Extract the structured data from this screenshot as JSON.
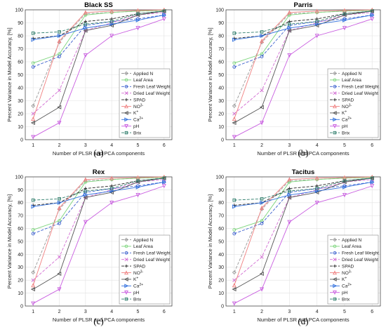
{
  "chart_data": [
    {
      "type": "line",
      "title": "Black SS",
      "caption": "(a)",
      "xlabel": "Number of PLSR and PCA components",
      "ylabel": "Percent Variance in Model Accuracy, [%]",
      "x": [
        1,
        2,
        3,
        4,
        5,
        6
      ],
      "xlim": [
        0.7,
        6.3
      ],
      "ylim": [
        0,
        100
      ],
      "xticks": [
        1,
        2,
        3,
        4,
        5,
        6
      ],
      "yticks": [
        0,
        10,
        20,
        30,
        40,
        50,
        60,
        70,
        80,
        90,
        100
      ],
      "grid": true,
      "legend_position": "bottom-right",
      "series": [
        {
          "name": "Applied N",
          "values": [
            26,
            75,
            97,
            98,
            99,
            99.5
          ],
          "color": "#999999",
          "dash": "4,2",
          "marker": "diamond"
        },
        {
          "name": "Leaf Area",
          "values": [
            59,
            66,
            96,
            98,
            99,
            99.5
          ],
          "color": "#7cd67c",
          "dash": "",
          "marker": "circle"
        },
        {
          "name": "Fresh Leaf Weight",
          "values": [
            56,
            64,
            88,
            91,
            93,
            96
          ],
          "color": "#3a5fcd",
          "dash": "4,2",
          "marker": "circle"
        },
        {
          "name": "Dried Leaf Weight",
          "values": [
            20,
            38,
            84,
            90,
            96,
            98
          ],
          "color": "#d36fd3",
          "dash": "4,2",
          "marker": "x"
        },
        {
          "name": "SPAD",
          "values": [
            78,
            80,
            91,
            93,
            97,
            99
          ],
          "color": "#222222",
          "dash": "4,2",
          "marker": "plus"
        },
        {
          "name": "NO3-",
          "values": [
            16,
            76,
            98,
            99,
            99.5,
            100
          ],
          "color": "#f08080",
          "dash": "",
          "marker": "triangle-up"
        },
        {
          "name": "K+",
          "values": [
            13,
            25,
            84,
            88,
            96,
            99
          ],
          "color": "#555555",
          "dash": "",
          "marker": "triangle-left"
        },
        {
          "name": "Ca2+",
          "values": [
            77,
            80,
            86,
            89,
            92,
            96
          ],
          "color": "#2f6fde",
          "dash": "",
          "marker": "triangle-right"
        },
        {
          "name": "pH",
          "values": [
            2,
            13,
            65,
            80,
            86,
            93
          ],
          "color": "#c95ee0",
          "dash": "",
          "marker": "triangle-down"
        },
        {
          "name": "Brix",
          "values": [
            82,
            83,
            89,
            91,
            97,
            99
          ],
          "color": "#2e7d6b",
          "dash": "4,2",
          "marker": "square"
        }
      ]
    },
    {
      "type": "line",
      "title": "Parris",
      "caption": "(b)",
      "xlabel": "Number of PLSR and PCA components",
      "ylabel": "Percent Variance in Model Accuracy, [%]",
      "x": [
        1,
        2,
        3,
        4,
        5,
        6
      ],
      "xlim": [
        0.7,
        6.3
      ],
      "ylim": [
        0,
        100
      ],
      "xticks": [
        1,
        2,
        3,
        4,
        5,
        6
      ],
      "yticks": [
        0,
        10,
        20,
        30,
        40,
        50,
        60,
        70,
        80,
        90,
        100
      ],
      "grid": true,
      "legend_position": "bottom-right",
      "series": [
        {
          "name": "Applied N",
          "values": [
            26,
            75,
            97,
            98,
            99,
            99.5
          ],
          "color": "#999999",
          "dash": "4,2",
          "marker": "diamond"
        },
        {
          "name": "Leaf Area",
          "values": [
            59,
            66,
            96,
            98,
            99,
            99.5
          ],
          "color": "#7cd67c",
          "dash": "",
          "marker": "circle"
        },
        {
          "name": "Fresh Leaf Weight",
          "values": [
            56,
            64,
            88,
            91,
            93,
            96
          ],
          "color": "#3a5fcd",
          "dash": "4,2",
          "marker": "circle"
        },
        {
          "name": "Dried Leaf Weight",
          "values": [
            20,
            38,
            84,
            90,
            96,
            98
          ],
          "color": "#d36fd3",
          "dash": "4,2",
          "marker": "x"
        },
        {
          "name": "SPAD",
          "values": [
            78,
            80,
            91,
            93,
            97,
            99
          ],
          "color": "#222222",
          "dash": "4,2",
          "marker": "plus"
        },
        {
          "name": "NO3-",
          "values": [
            16,
            76,
            98,
            99,
            99.5,
            100
          ],
          "color": "#f08080",
          "dash": "",
          "marker": "triangle-up"
        },
        {
          "name": "K+",
          "values": [
            13,
            25,
            84,
            88,
            96,
            99
          ],
          "color": "#555555",
          "dash": "",
          "marker": "triangle-left"
        },
        {
          "name": "Ca2+",
          "values": [
            77,
            80,
            86,
            89,
            92,
            96
          ],
          "color": "#2f6fde",
          "dash": "",
          "marker": "triangle-right"
        },
        {
          "name": "pH",
          "values": [
            2,
            13,
            65,
            80,
            86,
            93
          ],
          "color": "#c95ee0",
          "dash": "",
          "marker": "triangle-down"
        },
        {
          "name": "Brix",
          "values": [
            82,
            83,
            89,
            91,
            97,
            99
          ],
          "color": "#2e7d6b",
          "dash": "4,2",
          "marker": "square"
        }
      ]
    },
    {
      "type": "line",
      "title": "Rex",
      "caption": "(c)",
      "xlabel": "Number of PLSR and PCA components",
      "ylabel": "Percent Variance in Model Accuracy, [%]",
      "x": [
        1,
        2,
        3,
        4,
        5,
        6
      ],
      "xlim": [
        0.7,
        6.3
      ],
      "ylim": [
        0,
        100
      ],
      "xticks": [
        1,
        2,
        3,
        4,
        5,
        6
      ],
      "yticks": [
        0,
        10,
        20,
        30,
        40,
        50,
        60,
        70,
        80,
        90,
        100
      ],
      "grid": true,
      "legend_position": "bottom-right",
      "series": [
        {
          "name": "Applied N",
          "values": [
            26,
            75,
            97,
            98,
            99,
            99.5
          ],
          "color": "#999999",
          "dash": "4,2",
          "marker": "diamond"
        },
        {
          "name": "Leaf Area",
          "values": [
            59,
            66,
            96,
            98,
            99,
            99.5
          ],
          "color": "#7cd67c",
          "dash": "",
          "marker": "circle"
        },
        {
          "name": "Fresh Leaf Weight",
          "values": [
            56,
            64,
            88,
            91,
            93,
            96
          ],
          "color": "#3a5fcd",
          "dash": "4,2",
          "marker": "circle"
        },
        {
          "name": "Dried Leaf Weight",
          "values": [
            20,
            38,
            84,
            90,
            96,
            98
          ],
          "color": "#d36fd3",
          "dash": "4,2",
          "marker": "x"
        },
        {
          "name": "SPAD",
          "values": [
            78,
            80,
            91,
            93,
            97,
            99
          ],
          "color": "#222222",
          "dash": "4,2",
          "marker": "plus"
        },
        {
          "name": "NO3-",
          "values": [
            16,
            76,
            98,
            99,
            99.5,
            100
          ],
          "color": "#f08080",
          "dash": "",
          "marker": "triangle-up"
        },
        {
          "name": "K+",
          "values": [
            13,
            25,
            84,
            88,
            96,
            99
          ],
          "color": "#555555",
          "dash": "",
          "marker": "triangle-left"
        },
        {
          "name": "Ca2+",
          "values": [
            77,
            80,
            86,
            89,
            92,
            96
          ],
          "color": "#2f6fde",
          "dash": "",
          "marker": "triangle-right"
        },
        {
          "name": "pH",
          "values": [
            2,
            13,
            65,
            80,
            86,
            93
          ],
          "color": "#c95ee0",
          "dash": "",
          "marker": "triangle-down"
        },
        {
          "name": "Brix",
          "values": [
            82,
            83,
            89,
            91,
            97,
            99
          ],
          "color": "#2e7d6b",
          "dash": "4,2",
          "marker": "square"
        }
      ]
    },
    {
      "type": "line",
      "title": "Tacitus",
      "caption": "(d)",
      "xlabel": "Number of PLSR and PCA components",
      "ylabel": "Percent Variance in Model Accuracy, [%]",
      "x": [
        1,
        2,
        3,
        4,
        5,
        6
      ],
      "xlim": [
        0.7,
        6.3
      ],
      "ylim": [
        0,
        100
      ],
      "xticks": [
        1,
        2,
        3,
        4,
        5,
        6
      ],
      "yticks": [
        0,
        10,
        20,
        30,
        40,
        50,
        60,
        70,
        80,
        90,
        100
      ],
      "grid": true,
      "legend_position": "bottom-right",
      "series": [
        {
          "name": "Applied N",
          "values": [
            26,
            75,
            97,
            98,
            99,
            99.5
          ],
          "color": "#999999",
          "dash": "4,2",
          "marker": "diamond"
        },
        {
          "name": "Leaf Area",
          "values": [
            59,
            66,
            96,
            98,
            99,
            99.5
          ],
          "color": "#7cd67c",
          "dash": "",
          "marker": "circle"
        },
        {
          "name": "Fresh Leaf Weight",
          "values": [
            56,
            64,
            88,
            91,
            93,
            96
          ],
          "color": "#3a5fcd",
          "dash": "4,2",
          "marker": "circle"
        },
        {
          "name": "Dried Leaf Weight",
          "values": [
            20,
            38,
            84,
            90,
            96,
            98
          ],
          "color": "#d36fd3",
          "dash": "4,2",
          "marker": "x"
        },
        {
          "name": "SPAD",
          "values": [
            78,
            80,
            91,
            93,
            97,
            99
          ],
          "color": "#222222",
          "dash": "4,2",
          "marker": "plus"
        },
        {
          "name": "NO3-",
          "values": [
            16,
            76,
            98,
            99,
            99.5,
            100
          ],
          "color": "#f08080",
          "dash": "",
          "marker": "triangle-up"
        },
        {
          "name": "K+",
          "values": [
            13,
            25,
            84,
            88,
            96,
            99
          ],
          "color": "#555555",
          "dash": "",
          "marker": "triangle-left"
        },
        {
          "name": "Ca2+",
          "values": [
            77,
            80,
            86,
            89,
            92,
            96
          ],
          "color": "#2f6fde",
          "dash": "",
          "marker": "triangle-right"
        },
        {
          "name": "pH",
          "values": [
            2,
            13,
            65,
            80,
            86,
            93
          ],
          "color": "#c95ee0",
          "dash": "",
          "marker": "triangle-down"
        },
        {
          "name": "Brix",
          "values": [
            82,
            83,
            89,
            91,
            97,
            99
          ],
          "color": "#2e7d6b",
          "dash": "4,2",
          "marker": "square"
        }
      ]
    }
  ]
}
